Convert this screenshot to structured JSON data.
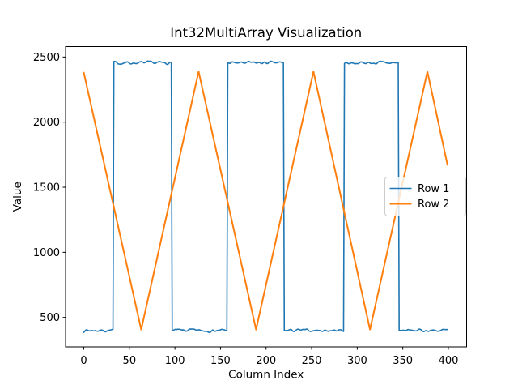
{
  "figure": {
    "background": "#ffffff",
    "spine_color": "#000000"
  },
  "chart_data": {
    "type": "line",
    "title": "Int32MultiArray Visualization",
    "xlabel": "Column Index",
    "ylabel": "Value",
    "grid": false,
    "xlim": [
      -20,
      420
    ],
    "ylim": [
      274,
      2580
    ],
    "x_ticks": [
      0,
      50,
      100,
      150,
      200,
      250,
      300,
      350,
      400
    ],
    "y_ticks": [
      500,
      1000,
      1500,
      2000,
      2500
    ],
    "n_points": 400,
    "legend": {
      "position": "center right",
      "entries": [
        "Row 1",
        "Row 2"
      ],
      "border_color": "#cccccc",
      "background": "#ffffff"
    },
    "series": [
      {
        "name": "Row 1",
        "color": "#1f77b4",
        "shape": "square",
        "low": 400,
        "high": 2455,
        "noise": 9,
        "noise_seed": 7,
        "high_segments": [
          [
            33,
            96
          ],
          [
            158,
            219
          ],
          [
            286,
            345
          ]
        ]
      },
      {
        "name": "Row 2",
        "color": "#ff7f0e",
        "shape": "triangle",
        "keypoints": [
          [
            0,
            2380
          ],
          [
            63,
            407
          ],
          [
            126,
            2388
          ],
          [
            189,
            407
          ],
          [
            252,
            2388
          ],
          [
            314,
            407
          ],
          [
            377,
            2388
          ],
          [
            399,
            1672
          ]
        ]
      }
    ]
  }
}
